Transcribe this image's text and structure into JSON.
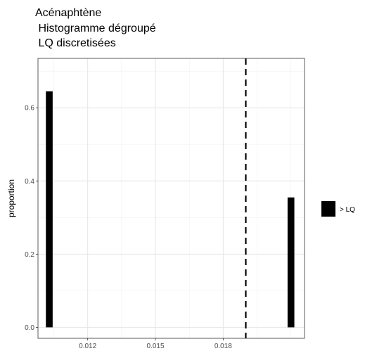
{
  "chart_data": {
    "type": "bar",
    "title_lines": [
      "Acénaphtène",
      " Histogramme dégroupé",
      " LQ discretisées"
    ],
    "xlabel": "",
    "ylabel": "proportion",
    "xlim": [
      0.0098,
      0.0216
    ],
    "ylim": [
      -0.03,
      0.735
    ],
    "xticks": [
      0.012,
      0.015,
      0.018
    ],
    "xtick_labels": [
      "0.012",
      "0.015",
      "0.018"
    ],
    "yticks": [
      0.0,
      0.2,
      0.4,
      0.6
    ],
    "ytick_labels": [
      "0.0",
      "0.2",
      "0.4",
      "0.6"
    ],
    "bar_width": 0.0003,
    "series": [
      {
        "name": "> LQ",
        "color": "#000000",
        "x": [
          0.0103,
          0.021
        ],
        "values": [
          0.645,
          0.355
        ]
      }
    ],
    "reference_line": {
      "x": 0.019,
      "style": "dashed",
      "color": "#000000"
    },
    "grid": true,
    "legend": {
      "position": "right",
      "entries": [
        "> LQ"
      ]
    }
  }
}
